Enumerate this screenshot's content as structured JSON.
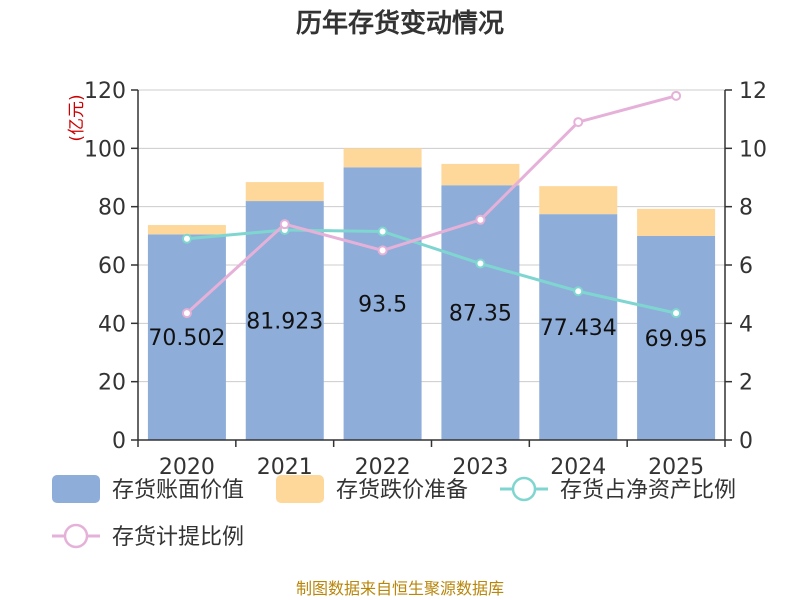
{
  "chart_data": {
    "type": "bar",
    "title": "历年存货变动情况",
    "categories": [
      "2020",
      "2021",
      "2022",
      "2023",
      "2024",
      "2025"
    ],
    "y_left": {
      "label": "(亿元)",
      "ylim": [
        0,
        120
      ],
      "ticks": [
        0,
        20,
        40,
        60,
        80,
        100,
        120
      ]
    },
    "y_right": {
      "ylim": [
        0,
        12
      ],
      "ticks": [
        0,
        2,
        4,
        6,
        8,
        10,
        12
      ]
    },
    "stacked": true,
    "grid": true,
    "legend_position": "bottom",
    "series": [
      {
        "name": "存货账面价值",
        "kind": "bar",
        "axis": "left",
        "color": "#8eadd9",
        "values": [
          70.502,
          81.923,
          93.5,
          87.35,
          77.434,
          69.95
        ],
        "data_labels": [
          "70.502",
          "81.923",
          "93.5",
          "87.35",
          "77.434",
          "69.95"
        ]
      },
      {
        "name": "存货跌价准备",
        "kind": "bar",
        "axis": "left",
        "color": "#fdd89a",
        "values": [
          3.2,
          6.5,
          6.5,
          7.3,
          9.6,
          9.3
        ]
      },
      {
        "name": "存货占净资产比例",
        "kind": "line",
        "axis": "right",
        "color": "#7fd6d0",
        "values": [
          6.9,
          7.2,
          7.15,
          6.05,
          5.1,
          4.35
        ]
      },
      {
        "name": "存货计提比例",
        "kind": "line",
        "axis": "right",
        "color": "#e6b1d8",
        "values": [
          4.35,
          7.4,
          6.5,
          7.55,
          10.9,
          11.8
        ]
      }
    ],
    "source_note": "制图数据来自恒生聚源数据库"
  }
}
